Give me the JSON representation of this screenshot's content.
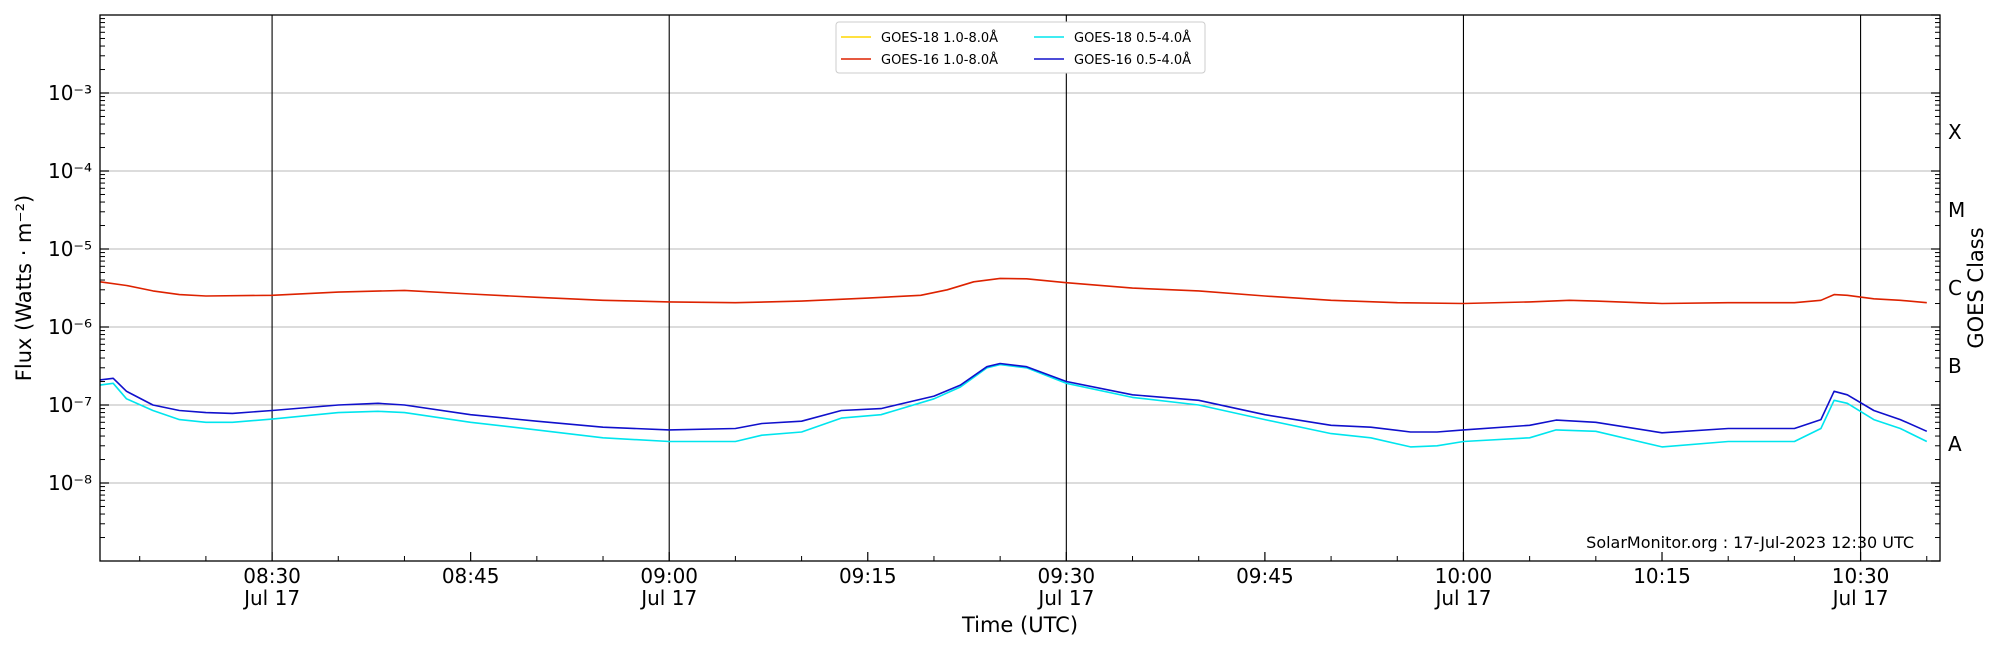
{
  "chart_data": {
    "type": "line",
    "xlabel": "Time (UTC)",
    "ylabel": "Flux (Watts · m⁻²)",
    "ylabel_right": "GOES Class",
    "yscale": "log",
    "ylim": [
      1e-09,
      0.01
    ],
    "xlim": [
      "2023-07-17T08:17",
      "2023-07-17T10:36"
    ],
    "grid": "horizontal",
    "legend_position": "top-center",
    "credit": "SolarMonitor.org : 17-Jul-2023 12:30 UTC",
    "y_tick_labels": [
      {
        "value": 1e-08,
        "label": "10⁻⁸"
      },
      {
        "value": 1e-07,
        "label": "10⁻⁷"
      },
      {
        "value": 1e-06,
        "label": "10⁻⁶"
      },
      {
        "value": 1e-05,
        "label": "10⁻⁵"
      },
      {
        "value": 0.0001,
        "label": "10⁻⁴"
      },
      {
        "value": 0.001,
        "label": "10⁻³"
      }
    ],
    "x_ticks": [
      {
        "time": "2023-07-17T08:30",
        "label": "08:30",
        "sublabel": "Jul 17",
        "vline": true
      },
      {
        "time": "2023-07-17T08:45",
        "label": "08:45",
        "sublabel": "",
        "vline": false
      },
      {
        "time": "2023-07-17T09:00",
        "label": "09:00",
        "sublabel": "Jul 17",
        "vline": true
      },
      {
        "time": "2023-07-17T09:15",
        "label": "09:15",
        "sublabel": "",
        "vline": false
      },
      {
        "time": "2023-07-17T09:30",
        "label": "09:30",
        "sublabel": "Jul 17",
        "vline": true
      },
      {
        "time": "2023-07-17T09:45",
        "label": "09:45",
        "sublabel": "",
        "vline": false
      },
      {
        "time": "2023-07-17T10:00",
        "label": "10:00",
        "sublabel": "Jul 17",
        "vline": true
      },
      {
        "time": "2023-07-17T10:15",
        "label": "10:15",
        "sublabel": "",
        "vline": false
      },
      {
        "time": "2023-07-17T10:30",
        "label": "10:30",
        "sublabel": "Jul 17",
        "vline": true
      }
    ],
    "goes_classes": [
      {
        "label": "A",
        "value": 1e-08
      },
      {
        "label": "B",
        "value": 1e-07
      },
      {
        "label": "C",
        "value": 1e-06
      },
      {
        "label": "M",
        "value": 1e-05
      },
      {
        "label": "X",
        "value": 0.0001
      }
    ],
    "series": [
      {
        "name": "GOES-18 1.0-8.0Å",
        "color": "#ffd700",
        "points": []
      },
      {
        "name": "GOES-16 1.0-8.0Å",
        "color": "#dd2200",
        "points": [
          [
            "08:17",
            3.8e-06
          ],
          [
            "08:19",
            3.4e-06
          ],
          [
            "08:21",
            2.9e-06
          ],
          [
            "08:23",
            2.6e-06
          ],
          [
            "08:25",
            2.5e-06
          ],
          [
            "08:30",
            2.55e-06
          ],
          [
            "08:35",
            2.8e-06
          ],
          [
            "08:40",
            2.95e-06
          ],
          [
            "08:45",
            2.65e-06
          ],
          [
            "08:50",
            2.4e-06
          ],
          [
            "08:55",
            2.2e-06
          ],
          [
            "09:00",
            2.1e-06
          ],
          [
            "09:05",
            2.05e-06
          ],
          [
            "09:10",
            2.15e-06
          ],
          [
            "09:15",
            2.35e-06
          ],
          [
            "09:19",
            2.55e-06
          ],
          [
            "09:21",
            3e-06
          ],
          [
            "09:23",
            3.8e-06
          ],
          [
            "09:25",
            4.2e-06
          ],
          [
            "09:27",
            4.15e-06
          ],
          [
            "09:30",
            3.7e-06
          ],
          [
            "09:35",
            3.15e-06
          ],
          [
            "09:40",
            2.9e-06
          ],
          [
            "09:45",
            2.5e-06
          ],
          [
            "09:50",
            2.2e-06
          ],
          [
            "09:55",
            2.05e-06
          ],
          [
            "10:00",
            2e-06
          ],
          [
            "10:05",
            2.1e-06
          ],
          [
            "10:08",
            2.2e-06
          ],
          [
            "10:10",
            2.15e-06
          ],
          [
            "10:15",
            2e-06
          ],
          [
            "10:20",
            2.05e-06
          ],
          [
            "10:25",
            2.05e-06
          ],
          [
            "10:27",
            2.2e-06
          ],
          [
            "10:28",
            2.6e-06
          ],
          [
            "10:29",
            2.55e-06
          ],
          [
            "10:31",
            2.3e-06
          ],
          [
            "10:33",
            2.2e-06
          ],
          [
            "10:35",
            2.05e-06
          ]
        ]
      },
      {
        "name": "GOES-18 0.5-4.0Å",
        "color": "#00e5ee",
        "points": [
          [
            "08:17",
            1.8e-07
          ],
          [
            "08:18",
            1.9e-07
          ],
          [
            "08:19",
            1.2e-07
          ],
          [
            "08:21",
            8.5e-08
          ],
          [
            "08:23",
            6.5e-08
          ],
          [
            "08:25",
            6e-08
          ],
          [
            "08:27",
            6e-08
          ],
          [
            "08:30",
            6.6e-08
          ],
          [
            "08:35",
            8e-08
          ],
          [
            "08:38",
            8.3e-08
          ],
          [
            "08:40",
            8e-08
          ],
          [
            "08:45",
            6e-08
          ],
          [
            "08:50",
            4.8e-08
          ],
          [
            "08:55",
            3.8e-08
          ],
          [
            "09:00",
            3.4e-08
          ],
          [
            "09:05",
            3.4e-08
          ],
          [
            "09:07",
            4.1e-08
          ],
          [
            "09:10",
            4.5e-08
          ],
          [
            "09:13",
            6.8e-08
          ],
          [
            "09:16",
            7.5e-08
          ],
          [
            "09:20",
            1.2e-07
          ],
          [
            "09:22",
            1.7e-07
          ],
          [
            "09:24",
            3e-07
          ],
          [
            "09:25",
            3.3e-07
          ],
          [
            "09:27",
            3e-07
          ],
          [
            "09:30",
            1.9e-07
          ],
          [
            "09:35",
            1.25e-07
          ],
          [
            "09:40",
            1e-07
          ],
          [
            "09:45",
            6.5e-08
          ],
          [
            "09:50",
            4.3e-08
          ],
          [
            "09:53",
            3.8e-08
          ],
          [
            "09:56",
            2.9e-08
          ],
          [
            "09:58",
            3e-08
          ],
          [
            "10:00",
            3.4e-08
          ],
          [
            "10:05",
            3.8e-08
          ],
          [
            "10:07",
            4.8e-08
          ],
          [
            "10:10",
            4.6e-08
          ],
          [
            "10:15",
            2.9e-08
          ],
          [
            "10:20",
            3.4e-08
          ],
          [
            "10:25",
            3.4e-08
          ],
          [
            "10:27",
            5e-08
          ],
          [
            "10:28",
            1.15e-07
          ],
          [
            "10:29",
            1.05e-07
          ],
          [
            "10:31",
            6.5e-08
          ],
          [
            "10:33",
            5e-08
          ],
          [
            "10:35",
            3.4e-08
          ]
        ]
      },
      {
        "name": "GOES-16 0.5-4.0Å",
        "color": "#1010cc",
        "points": [
          [
            "08:17",
            2.1e-07
          ],
          [
            "08:18",
            2.2e-07
          ],
          [
            "08:19",
            1.5e-07
          ],
          [
            "08:21",
            1e-07
          ],
          [
            "08:23",
            8.5e-08
          ],
          [
            "08:25",
            8e-08
          ],
          [
            "08:27",
            7.8e-08
          ],
          [
            "08:30",
            8.5e-08
          ],
          [
            "08:35",
            1e-07
          ],
          [
            "08:38",
            1.05e-07
          ],
          [
            "08:40",
            1e-07
          ],
          [
            "08:45",
            7.5e-08
          ],
          [
            "08:50",
            6.2e-08
          ],
          [
            "08:55",
            5.2e-08
          ],
          [
            "09:00",
            4.8e-08
          ],
          [
            "09:05",
            5e-08
          ],
          [
            "09:07",
            5.8e-08
          ],
          [
            "09:10",
            6.2e-08
          ],
          [
            "09:13",
            8.5e-08
          ],
          [
            "09:16",
            9e-08
          ],
          [
            "09:20",
            1.3e-07
          ],
          [
            "09:22",
            1.8e-07
          ],
          [
            "09:24",
            3.1e-07
          ],
          [
            "09:25",
            3.4e-07
          ],
          [
            "09:27",
            3.1e-07
          ],
          [
            "09:30",
            2e-07
          ],
          [
            "09:35",
            1.35e-07
          ],
          [
            "09:40",
            1.15e-07
          ],
          [
            "09:45",
            7.5e-08
          ],
          [
            "09:50",
            5.5e-08
          ],
          [
            "09:53",
            5.2e-08
          ],
          [
            "09:56",
            4.5e-08
          ],
          [
            "09:58",
            4.5e-08
          ],
          [
            "10:00",
            4.8e-08
          ],
          [
            "10:05",
            5.5e-08
          ],
          [
            "10:07",
            6.4e-08
          ],
          [
            "10:10",
            6e-08
          ],
          [
            "10:15",
            4.4e-08
          ],
          [
            "10:20",
            5e-08
          ],
          [
            "10:25",
            5e-08
          ],
          [
            "10:27",
            6.5e-08
          ],
          [
            "10:28",
            1.5e-07
          ],
          [
            "10:29",
            1.35e-07
          ],
          [
            "10:31",
            8.5e-08
          ],
          [
            "10:33",
            6.5e-08
          ],
          [
            "10:35",
            4.6e-08
          ]
        ]
      }
    ]
  }
}
